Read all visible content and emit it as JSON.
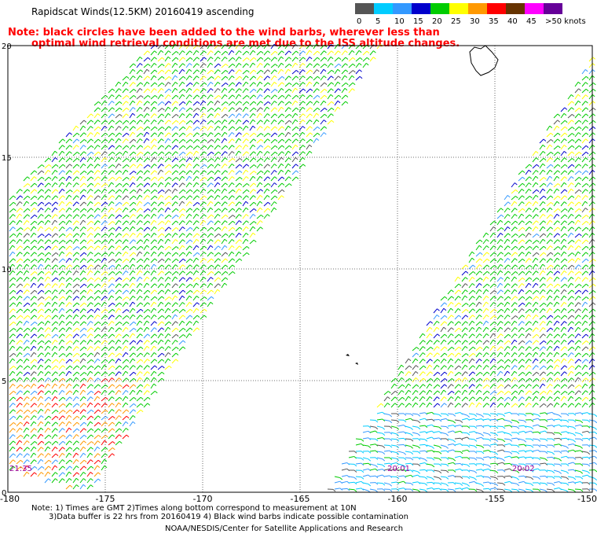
{
  "header": {
    "title": "Rapidscat Winds(12.5KM) 20160419 ascending",
    "note_line1": "Note: black circles have been added to the wind barbs, wherever less than",
    "note_line2": "optimal wind retrieval conditions are met due to the ISS altitude changes."
  },
  "colorbar": {
    "swatches": [
      {
        "label": "0",
        "color": "#555555"
      },
      {
        "label": "5",
        "color": "#00ccff"
      },
      {
        "label": "10",
        "color": "#3399ff"
      },
      {
        "label": "15",
        "color": "#0000cc"
      },
      {
        "label": "20",
        "color": "#00cc00"
      },
      {
        "label": "25",
        "color": "#ffff00"
      },
      {
        "label": "30",
        "color": "#ff9900"
      },
      {
        "label": "35",
        "color": "#ff0000"
      },
      {
        "label": "40",
        "color": "#663300"
      },
      {
        "label": "45",
        "color": "#ff00ff"
      },
      {
        "label": ">50 knots",
        "color": "#660099"
      }
    ]
  },
  "chart_data": {
    "type": "map",
    "xlabel": "",
    "ylabel": "",
    "xlim": [
      -180,
      -150
    ],
    "ylim": [
      0,
      20
    ],
    "grid": true,
    "x_ticks": [
      "-180",
      "-175",
      "-170",
      "-165",
      "-160",
      "-155",
      "-150"
    ],
    "y_ticks": [
      "0",
      "5",
      "10",
      "15",
      "20"
    ],
    "swath_times": [
      {
        "label": "21:35",
        "x": -180,
        "y": 0.6
      },
      {
        "label": "20:01",
        "x": -160.6,
        "y": 0.6
      },
      {
        "label": "20:02",
        "x": -154.2,
        "y": 0.6
      }
    ]
  },
  "footer": {
    "line1": "Note: 1) Times are GMT 2)Times along bottom correspond to measurement at 10N",
    "line2": "3)Data buffer is 22 hrs from 20160419 4) Black wind barbs indicate possible contamination",
    "line3": "NOAA/NESDIS/Center for Satellite Applications and Research"
  }
}
